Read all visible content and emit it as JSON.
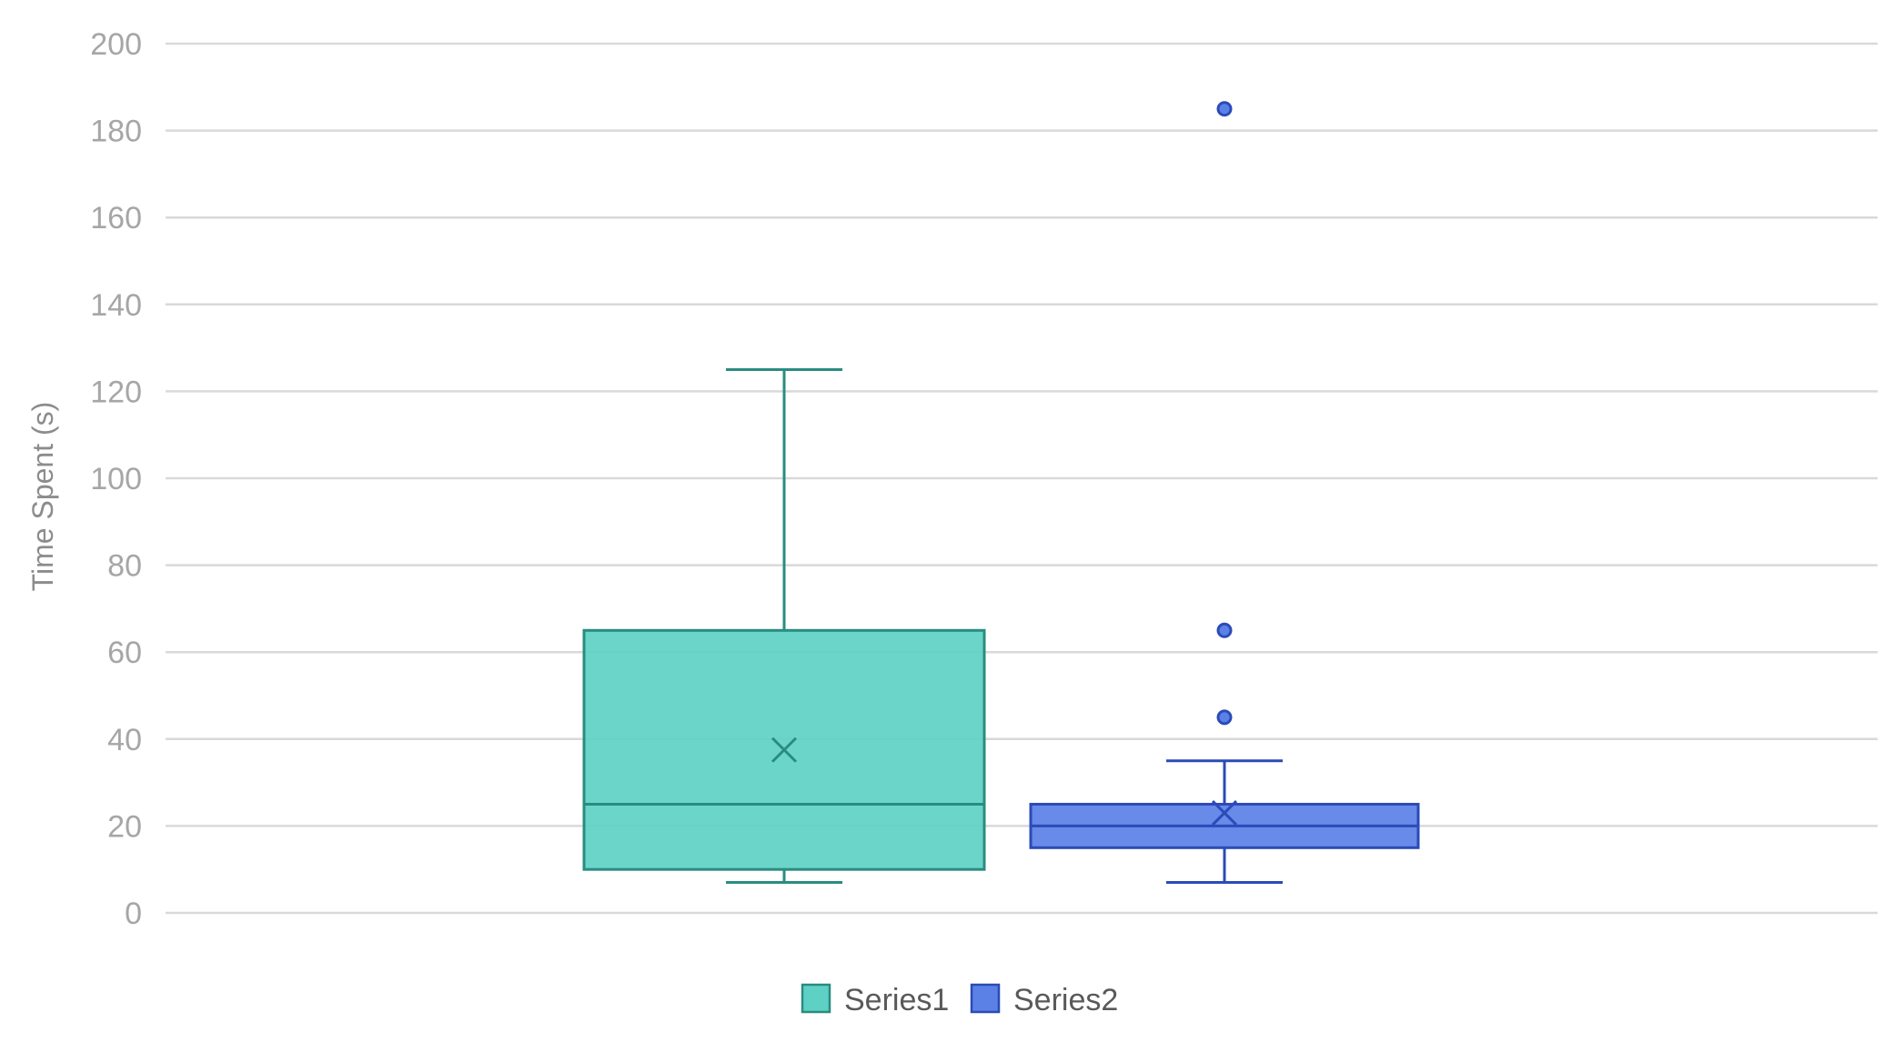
{
  "chart_data": {
    "type": "boxplot",
    "title": "",
    "xlabel": "",
    "ylabel": "Time Spent (s)",
    "ylim": [
      0,
      200
    ],
    "yticks": [
      0,
      20,
      40,
      60,
      80,
      100,
      120,
      140,
      160,
      180,
      200
    ],
    "grid": true,
    "legend": "bottom",
    "series": [
      {
        "name": "Series1",
        "min": 7,
        "q1": 10,
        "median": 25,
        "q3": 65,
        "max": 125,
        "mean": 37.5,
        "outliers": [],
        "fill": "#5ED1C4",
        "stroke": "#2A8C80"
      },
      {
        "name": "Series2",
        "min": 7,
        "q1": 15,
        "median": 20,
        "q3": 25,
        "max": 35,
        "mean": 23,
        "outliers": [
          45,
          65,
          185
        ],
        "fill": "#5B80E6",
        "stroke": "#2A4BB8"
      }
    ]
  }
}
